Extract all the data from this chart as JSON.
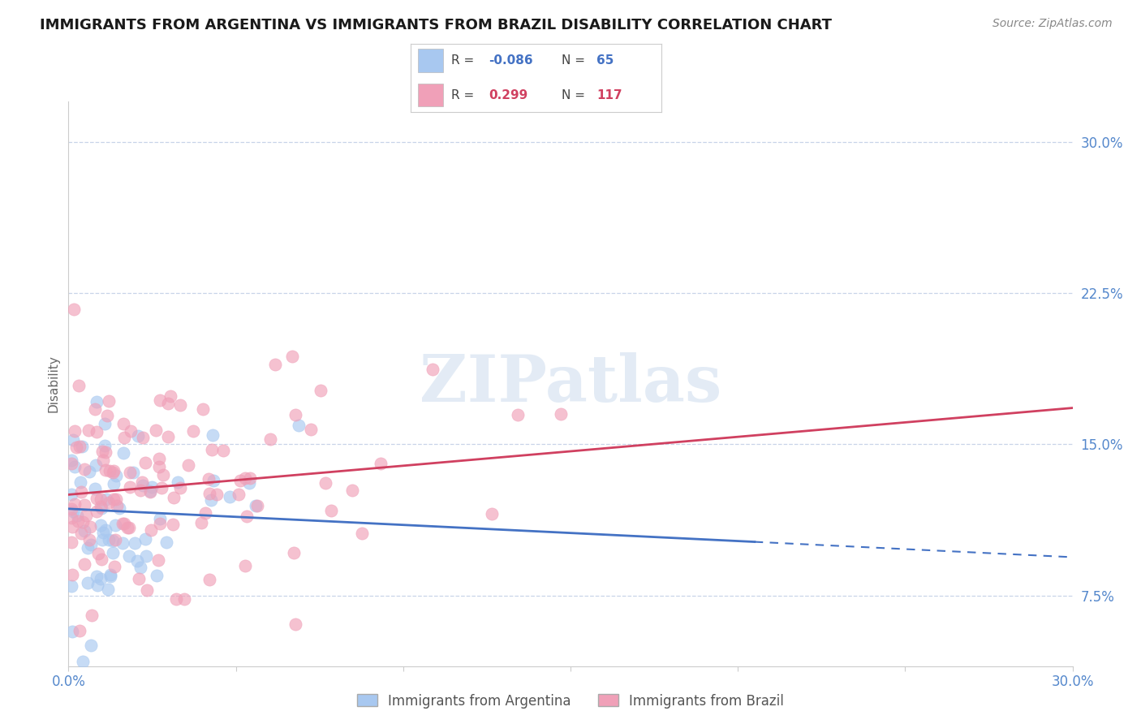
{
  "title": "IMMIGRANTS FROM ARGENTINA VS IMMIGRANTS FROM BRAZIL DISABILITY CORRELATION CHART",
  "source": "Source: ZipAtlas.com",
  "ylabel": "Disability",
  "xlim": [
    0.0,
    0.3
  ],
  "ylim": [
    0.04,
    0.32
  ],
  "yticks": [
    0.075,
    0.15,
    0.225,
    0.3
  ],
  "ytick_labels": [
    "7.5%",
    "15.0%",
    "22.5%",
    "30.0%"
  ],
  "xticks": [
    0.0,
    0.05,
    0.1,
    0.15,
    0.2,
    0.25,
    0.3
  ],
  "xtick_labels": [
    "0.0%",
    "",
    "",
    "",
    "",
    "",
    "30.0%"
  ],
  "argentina_R": -0.086,
  "argentina_N": 65,
  "brazil_R": 0.299,
  "brazil_N": 117,
  "argentina_color": "#a8c8f0",
  "brazil_color": "#f0a0b8",
  "argentina_line_color": "#4472c4",
  "brazil_line_color": "#d04060",
  "background_color": "#ffffff",
  "grid_color": "#c8d4e8",
  "watermark_color": "#ccdcee",
  "title_fontsize": 13,
  "tick_label_color": "#5588cc",
  "arg_line_start_y": 0.118,
  "arg_line_end_y": 0.094,
  "bra_line_start_y": 0.125,
  "bra_line_end_y": 0.168
}
